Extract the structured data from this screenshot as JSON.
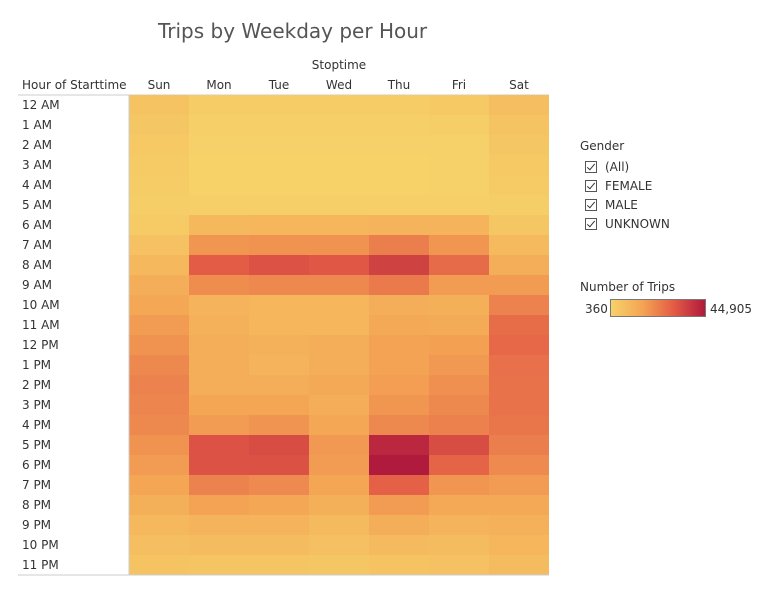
{
  "title": "Trips by Weekday per Hour",
  "chart_data": {
    "type": "heatmap",
    "title": "Trips by Weekday per Hour",
    "column_header": "Stoptime",
    "row_header": "Hour of Starttime",
    "columns": [
      "Sun",
      "Mon",
      "Tue",
      "Wed",
      "Thu",
      "Fri",
      "Sat"
    ],
    "rows": [
      "12 AM",
      "1 AM",
      "2 AM",
      "3 AM",
      "4 AM",
      "5 AM",
      "6 AM",
      "7 AM",
      "8 AM",
      "9 AM",
      "10 AM",
      "11 AM",
      "12 PM",
      "1 PM",
      "2 PM",
      "3 PM",
      "4 PM",
      "5 PM",
      "6 PM",
      "7 PM",
      "8 PM",
      "9 PM",
      "10 PM",
      "11 PM"
    ],
    "values": [
      [
        5500,
        2500,
        2500,
        2500,
        2600,
        3500,
        7000
      ],
      [
        4500,
        1500,
        1500,
        1500,
        1500,
        2000,
        5500
      ],
      [
        3500,
        1000,
        1000,
        1000,
        1000,
        1300,
        4500
      ],
      [
        3000,
        800,
        800,
        800,
        800,
        1000,
        3500
      ],
      [
        2500,
        800,
        800,
        800,
        800,
        900,
        3000
      ],
      [
        2000,
        1500,
        1500,
        1500,
        1500,
        1500,
        2000
      ],
      [
        3000,
        9000,
        9500,
        9500,
        10500,
        10000,
        4500
      ],
      [
        6000,
        18000,
        19000,
        19000,
        23000,
        18000,
        8500
      ],
      [
        9000,
        30000,
        32000,
        31000,
        36000,
        27000,
        12500
      ],
      [
        12000,
        20000,
        21000,
        21000,
        24000,
        17000,
        17000
      ],
      [
        14000,
        10000,
        9500,
        9500,
        12500,
        11500,
        22000
      ],
      [
        17000,
        11000,
        9500,
        9500,
        13500,
        13000,
        26500
      ],
      [
        19000,
        12000,
        11000,
        12500,
        15500,
        16000,
        27500
      ],
      [
        21000,
        12500,
        10500,
        12500,
        15500,
        17500,
        26000
      ],
      [
        22000,
        12500,
        12500,
        13500,
        16500,
        19500,
        25500
      ],
      [
        21500,
        14500,
        14500,
        12000,
        18000,
        21000,
        25500
      ],
      [
        21000,
        17000,
        18500,
        14000,
        21000,
        22500,
        25000
      ],
      [
        19000,
        32000,
        33500,
        17500,
        42000,
        33500,
        23000
      ],
      [
        17000,
        32000,
        32500,
        17000,
        44905,
        28500,
        20500
      ],
      [
        14500,
        22000,
        20500,
        14500,
        29000,
        18000,
        17000
      ],
      [
        11500,
        15500,
        14000,
        11500,
        17000,
        13500,
        13500
      ],
      [
        9000,
        10500,
        10000,
        8500,
        12000,
        10500,
        11000
      ],
      [
        7000,
        7500,
        7500,
        6500,
        8500,
        8000,
        9500
      ],
      [
        5500,
        5000,
        5000,
        4500,
        5500,
        6000,
        8000
      ]
    ],
    "color_scale": {
      "min": 360,
      "max": 44905,
      "min_label": "360",
      "max_label": "44,905",
      "colors": [
        "#f6d36a",
        "#f4a454",
        "#e35c46",
        "#b01a3c"
      ]
    }
  },
  "legend_color": {
    "title": "Number of Trips",
    "min_label": "360",
    "max_label": "44,905"
  },
  "legend_gender": {
    "title": "Gender",
    "items": [
      {
        "label": "(All)",
        "checked": true
      },
      {
        "label": "FEMALE",
        "checked": true
      },
      {
        "label": "MALE",
        "checked": true
      },
      {
        "label": "UNKNOWN",
        "checked": true
      }
    ]
  }
}
